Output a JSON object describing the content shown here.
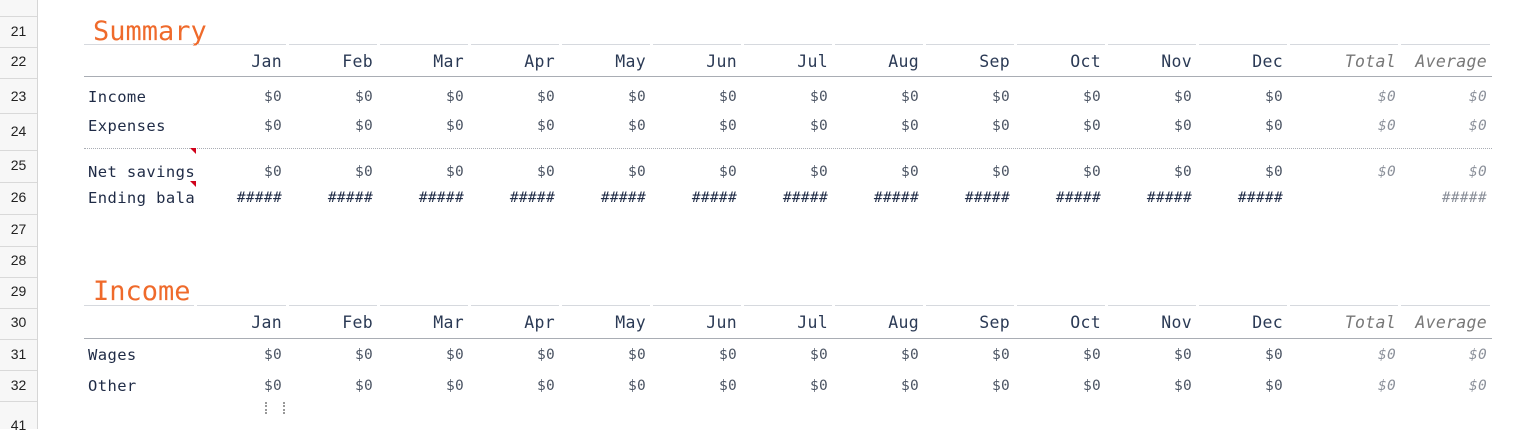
{
  "row_numbers": [
    "21",
    "22",
    "23",
    "24",
    "25",
    "26",
    "27",
    "28",
    "29",
    "30",
    "31",
    "32",
    "41"
  ],
  "summary": {
    "title": "Summary",
    "months": [
      "Jan",
      "Feb",
      "Mar",
      "Apr",
      "May",
      "Jun",
      "Jul",
      "Aug",
      "Sep",
      "Oct",
      "Nov",
      "Dec"
    ],
    "total_label": "Total",
    "average_label": "Average",
    "rows": [
      {
        "label": "Income",
        "values": [
          "$0",
          "$0",
          "$0",
          "$0",
          "$0",
          "$0",
          "$0",
          "$0",
          "$0",
          "$0",
          "$0",
          "$0"
        ],
        "total": "$0",
        "average": "$0"
      },
      {
        "label": "Expenses",
        "values": [
          "$0",
          "$0",
          "$0",
          "$0",
          "$0",
          "$0",
          "$0",
          "$0",
          "$0",
          "$0",
          "$0",
          "$0"
        ],
        "total": "$0",
        "average": "$0"
      },
      {
        "label": "Net savings",
        "values": [
          "$0",
          "$0",
          "$0",
          "$0",
          "$0",
          "$0",
          "$0",
          "$0",
          "$0",
          "$0",
          "$0",
          "$0"
        ],
        "total": "$0",
        "average": "$0"
      },
      {
        "label": "Ending bala",
        "values": [
          "#####",
          "#####",
          "#####",
          "#####",
          "#####",
          "#####",
          "#####",
          "#####",
          "#####",
          "#####",
          "#####",
          "#####"
        ],
        "total": "",
        "average": "#####"
      }
    ]
  },
  "income": {
    "title": "Income",
    "months": [
      "Jan",
      "Feb",
      "Mar",
      "Apr",
      "May",
      "Jun",
      "Jul",
      "Aug",
      "Sep",
      "Oct",
      "Nov",
      "Dec"
    ],
    "total_label": "Total",
    "average_label": "Average",
    "rows": [
      {
        "label": "Wages",
        "values": [
          "$0",
          "$0",
          "$0",
          "$0",
          "$0",
          "$0",
          "$0",
          "$0",
          "$0",
          "$0",
          "$0",
          "$0"
        ],
        "total": "$0",
        "average": "$0"
      },
      {
        "label": "Other",
        "values": [
          "$0",
          "$0",
          "$0",
          "$0",
          "$0",
          "$0",
          "$0",
          "$0",
          "$0",
          "$0",
          "$0",
          "$0"
        ],
        "total": "$0",
        "average": "$0"
      }
    ]
  },
  "colors": {
    "accent": "#ef6a2b",
    "text": "#1f2b46",
    "comment": "#d0021b"
  }
}
